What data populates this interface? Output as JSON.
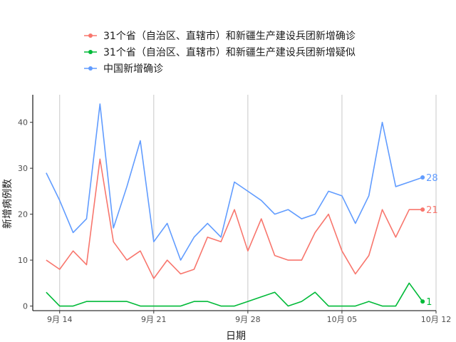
{
  "chart_data": {
    "type": "line",
    "xlabel": "日期",
    "ylabel": "新增病例数",
    "ylim": [
      -1,
      46
    ],
    "yticks": [
      0,
      10,
      20,
      30,
      40
    ],
    "xlim": [
      "2020-09-12",
      "2020-10-12"
    ],
    "xtick_dates": [
      "2020-09-14",
      "2020-09-21",
      "2020-09-28",
      "2020-10-05",
      "2020-10-12"
    ],
    "xtick_labels": [
      "9月 14",
      "9月 21",
      "9月 28",
      "10月 05",
      "10月 12"
    ],
    "grid": "vertical major only",
    "legend_position": "top",
    "x": [
      "2020-09-13",
      "2020-09-14",
      "2020-09-15",
      "2020-09-16",
      "2020-09-17",
      "2020-09-18",
      "2020-09-19",
      "2020-09-20",
      "2020-09-21",
      "2020-09-22",
      "2020-09-23",
      "2020-09-24",
      "2020-09-25",
      "2020-09-26",
      "2020-09-27",
      "2020-09-28",
      "2020-09-29",
      "2020-09-30",
      "2020-10-01",
      "2020-10-02",
      "2020-10-03",
      "2020-10-04",
      "2020-10-05",
      "2020-10-06",
      "2020-10-07",
      "2020-10-08",
      "2020-10-09",
      "2020-10-10",
      "2020-10-11"
    ],
    "series": [
      {
        "name": "31个省（自治区、直辖市）和新疆生产建设兵团新增确诊",
        "color": "#F8766D",
        "end_label": "21",
        "values": [
          10,
          8,
          12,
          9,
          32,
          14,
          10,
          12,
          6,
          10,
          7,
          8,
          15,
          14,
          21,
          12,
          19,
          11,
          10,
          10,
          16,
          20,
          12,
          7,
          11,
          21,
          15,
          21,
          21
        ]
      },
      {
        "name": "31个省（自治区、直辖市）和新疆生产建设兵团新增疑似",
        "color": "#00BA38",
        "end_label": "1",
        "values": [
          3,
          0,
          0,
          1,
          1,
          1,
          1,
          0,
          0,
          0,
          0,
          1,
          1,
          0,
          0,
          1,
          2,
          3,
          0,
          1,
          3,
          0,
          0,
          0,
          1,
          0,
          0,
          5,
          1
        ]
      },
      {
        "name": "中国新增确诊",
        "color": "#619CFF",
        "end_label": "28",
        "values": [
          29,
          23,
          16,
          19,
          44,
          17,
          26,
          36,
          14,
          18,
          10,
          15,
          18,
          15,
          27,
          25,
          23,
          20,
          21,
          19,
          20,
          25,
          24,
          18,
          24,
          40,
          26,
          27,
          28
        ]
      }
    ]
  }
}
